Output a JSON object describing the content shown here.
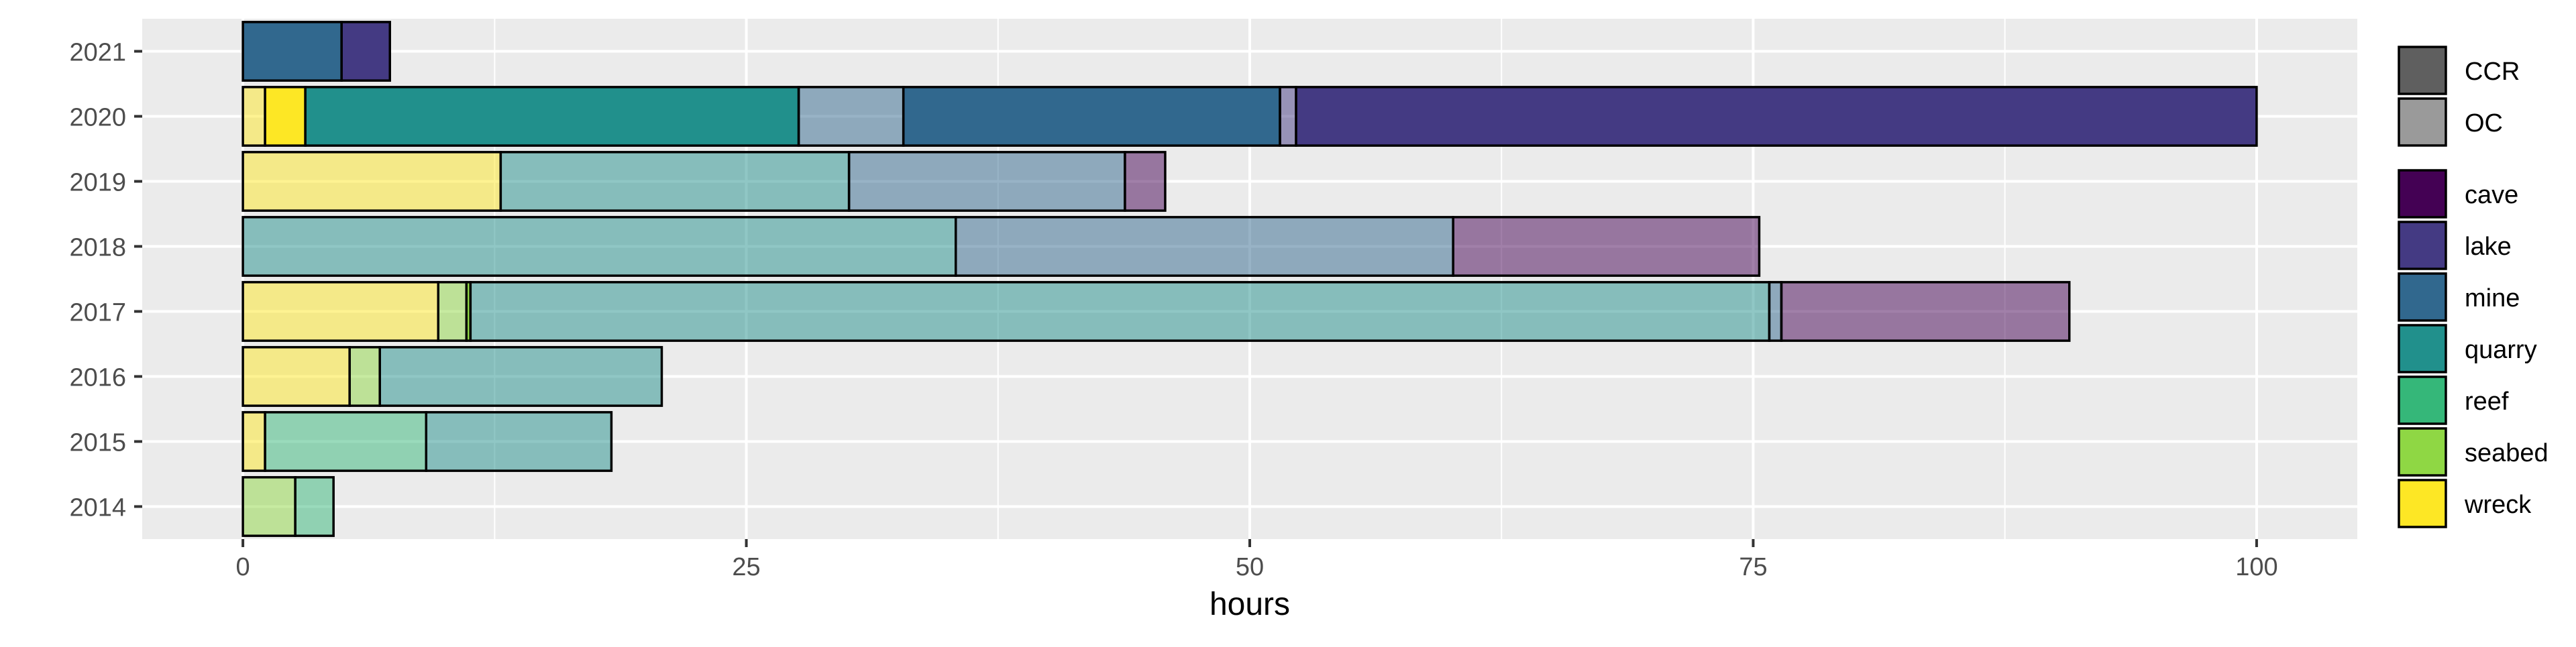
{
  "chart_data": {
    "type": "bar",
    "orientation": "horizontal",
    "stacked": true,
    "xlabel": "hours",
    "ylabel": "",
    "xlim": [
      -5,
      105
    ],
    "x_ticks": [
      0,
      25,
      50,
      75,
      100
    ],
    "x_tick_labels": [
      "0",
      "25",
      "50",
      "75",
      "100"
    ],
    "categories": [
      "2014",
      "2015",
      "2016",
      "2017",
      "2018",
      "2019",
      "2020",
      "2021"
    ],
    "grid": true,
    "legend_position": "right",
    "colors": {
      "cave": "#440154",
      "lake": "#443A83",
      "mine": "#31688E",
      "quarry": "#21908C",
      "reef": "#35B779",
      "seabed": "#8FD744",
      "wreck": "#FDE725",
      "panel_bg": "#EBEBEB",
      "grid": "#FFFFFF",
      "legend_ccr": "#5F5F5F",
      "legend_oc": "#9A9A9A"
    },
    "legend": {
      "mode": [
        {
          "label": "CCR",
          "alpha": 1.0
        },
        {
          "label": "OC",
          "alpha": 0.5
        }
      ],
      "environment": [
        "cave",
        "lake",
        "mine",
        "quarry",
        "reef",
        "seabed",
        "wreck"
      ]
    },
    "bars": [
      {
        "year": "2014",
        "segments": [
          {
            "env": "seabed",
            "mode": "OC",
            "start": 0,
            "end": 2.6
          },
          {
            "env": "reef",
            "mode": "OC",
            "start": 2.6,
            "end": 4.5
          }
        ]
      },
      {
        "year": "2015",
        "segments": [
          {
            "env": "wreck",
            "mode": "OC",
            "start": 0,
            "end": 1.1
          },
          {
            "env": "reef",
            "mode": "OC",
            "start": 1.1,
            "end": 9.1
          },
          {
            "env": "quarry",
            "mode": "OC",
            "start": 9.1,
            "end": 18.3
          }
        ]
      },
      {
        "year": "2016",
        "segments": [
          {
            "env": "wreck",
            "mode": "OC",
            "start": 0,
            "end": 5.3
          },
          {
            "env": "seabed",
            "mode": "OC",
            "start": 5.3,
            "end": 6.8
          },
          {
            "env": "quarry",
            "mode": "OC",
            "start": 6.8,
            "end": 20.8
          }
        ]
      },
      {
        "year": "2017",
        "segments": [
          {
            "env": "wreck",
            "mode": "OC",
            "start": 0,
            "end": 9.7
          },
          {
            "env": "seabed",
            "mode": "OC",
            "start": 9.7,
            "end": 11.1
          },
          {
            "env": "seabed",
            "mode": "CCR",
            "start": 11.1,
            "end": 11.3
          },
          {
            "env": "quarry",
            "mode": "OC",
            "start": 11.3,
            "end": 75.8
          },
          {
            "env": "mine",
            "mode": "OC",
            "start": 75.8,
            "end": 76.4
          },
          {
            "env": "cave",
            "mode": "OC",
            "start": 76.4,
            "end": 90.7
          }
        ]
      },
      {
        "year": "2018",
        "segments": [
          {
            "env": "quarry",
            "mode": "OC",
            "start": 0,
            "end": 35.4
          },
          {
            "env": "mine",
            "mode": "OC",
            "start": 35.4,
            "end": 60.1
          },
          {
            "env": "cave",
            "mode": "OC",
            "start": 60.1,
            "end": 75.3
          }
        ]
      },
      {
        "year": "2019",
        "segments": [
          {
            "env": "wreck",
            "mode": "OC",
            "start": 0,
            "end": 12.8
          },
          {
            "env": "quarry",
            "mode": "OC",
            "start": 12.8,
            "end": 30.1
          },
          {
            "env": "mine",
            "mode": "OC",
            "start": 30.1,
            "end": 43.8
          },
          {
            "env": "cave",
            "mode": "OC",
            "start": 43.8,
            "end": 45.8
          }
        ]
      },
      {
        "year": "2020",
        "segments": [
          {
            "env": "wreck",
            "mode": "OC",
            "start": 0,
            "end": 1.1
          },
          {
            "env": "wreck",
            "mode": "CCR",
            "start": 1.1,
            "end": 3.1
          },
          {
            "env": "quarry",
            "mode": "CCR",
            "start": 3.1,
            "end": 27.6
          },
          {
            "env": "mine",
            "mode": "OC",
            "start": 27.6,
            "end": 32.8
          },
          {
            "env": "mine",
            "mode": "CCR",
            "start": 32.8,
            "end": 51.5
          },
          {
            "env": "lake",
            "mode": "OC",
            "start": 51.5,
            "end": 52.3
          },
          {
            "env": "lake",
            "mode": "CCR",
            "start": 52.3,
            "end": 100.0
          }
        ]
      },
      {
        "year": "2021",
        "segments": [
          {
            "env": "mine",
            "mode": "CCR",
            "start": 0,
            "end": 4.9
          },
          {
            "env": "lake",
            "mode": "CCR",
            "start": 4.9,
            "end": 7.3
          }
        ]
      }
    ]
  }
}
